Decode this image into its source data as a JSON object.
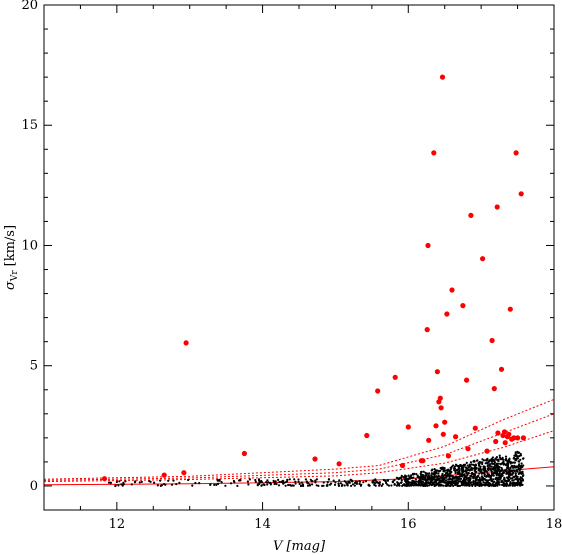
{
  "chart_data": {
    "type": "scatter",
    "title": "",
    "xlabel": "V [mag]",
    "ylabel_symbol": "σ",
    "ylabel_sub": "Vr",
    "ylabel_unit": "[km/s]",
    "xlim": [
      11,
      18
    ],
    "ylim": [
      -1,
      20
    ],
    "x_ticks": [
      12,
      14,
      16,
      18
    ],
    "y_ticks": [
      0,
      5,
      10,
      15,
      20
    ],
    "grid": false,
    "legend": "none",
    "colors": {
      "dense_points": "#000000",
      "highlight_points": "#ff0000",
      "curves": "#ff0000",
      "frame": "#000000"
    },
    "series": [
      {
        "name": "",
        "role": "dense",
        "generator": {
          "n": 1400,
          "seed": 7
        },
        "points": []
      },
      {
        "name": "",
        "role": "highlight",
        "points": [
          [
            11.83,
            0.3
          ],
          [
            12.65,
            0.45
          ],
          [
            12.92,
            0.55
          ],
          [
            12.95,
            5.95
          ],
          [
            13.75,
            1.35
          ],
          [
            14.72,
            1.12
          ],
          [
            15.05,
            0.92
          ],
          [
            15.43,
            2.1
          ],
          [
            15.58,
            3.95
          ],
          [
            15.82,
            4.52
          ],
          [
            15.92,
            0.85
          ],
          [
            16.0,
            2.45
          ],
          [
            16.18,
            1.05
          ],
          [
            16.2,
            1.05
          ],
          [
            16.26,
            6.5
          ],
          [
            16.27,
            10.0
          ],
          [
            16.28,
            1.9
          ],
          [
            16.35,
            13.85
          ],
          [
            16.38,
            2.5
          ],
          [
            16.4,
            4.75
          ],
          [
            16.42,
            3.5
          ],
          [
            16.44,
            3.65
          ],
          [
            16.45,
            3.25
          ],
          [
            16.47,
            17.0
          ],
          [
            16.48,
            2.15
          ],
          [
            16.5,
            2.65
          ],
          [
            16.53,
            7.15
          ],
          [
            16.55,
            1.25
          ],
          [
            16.6,
            8.15
          ],
          [
            16.65,
            2.05
          ],
          [
            16.75,
            7.5
          ],
          [
            16.8,
            4.4
          ],
          [
            16.82,
            1.55
          ],
          [
            16.86,
            11.25
          ],
          [
            16.92,
            2.4
          ],
          [
            17.02,
            9.45
          ],
          [
            17.08,
            1.45
          ],
          [
            17.15,
            6.05
          ],
          [
            17.18,
            4.05
          ],
          [
            17.2,
            1.85
          ],
          [
            17.22,
            11.6
          ],
          [
            17.23,
            2.2
          ],
          [
            17.28,
            4.85
          ],
          [
            17.3,
            2.1
          ],
          [
            17.32,
            2.25
          ],
          [
            17.33,
            1.8
          ],
          [
            17.36,
            2.05
          ],
          [
            17.38,
            2.15
          ],
          [
            17.4,
            7.35
          ],
          [
            17.42,
            1.95
          ],
          [
            17.45,
            2.0
          ],
          [
            17.48,
            13.85
          ],
          [
            17.5,
            2.0
          ],
          [
            17.55,
            12.15
          ],
          [
            17.58,
            2.0
          ]
        ]
      }
    ],
    "curves": [
      {
        "style": "solid",
        "points": [
          [
            11,
            0.05
          ],
          [
            13,
            0.09
          ],
          [
            15,
            0.18
          ],
          [
            16,
            0.3
          ],
          [
            17,
            0.55
          ],
          [
            18,
            0.8
          ]
        ]
      },
      {
        "style": "dotted",
        "points": [
          [
            11,
            0.18
          ],
          [
            13,
            0.27
          ],
          [
            15,
            0.42
          ],
          [
            15.6,
            0.55
          ],
          [
            16.5,
            0.95
          ],
          [
            17.3,
            1.6
          ],
          [
            18,
            2.3
          ]
        ]
      },
      {
        "style": "dotted",
        "points": [
          [
            11,
            0.23
          ],
          [
            13,
            0.33
          ],
          [
            15,
            0.55
          ],
          [
            15.6,
            0.7
          ],
          [
            16.5,
            1.3
          ],
          [
            17.3,
            2.2
          ],
          [
            18,
            3.0
          ]
        ]
      },
      {
        "style": "dotted",
        "points": [
          [
            11,
            0.28
          ],
          [
            13,
            0.4
          ],
          [
            15,
            0.7
          ],
          [
            15.6,
            0.85
          ],
          [
            16.5,
            1.65
          ],
          [
            17.3,
            2.75
          ],
          [
            18,
            3.6
          ]
        ]
      }
    ]
  }
}
